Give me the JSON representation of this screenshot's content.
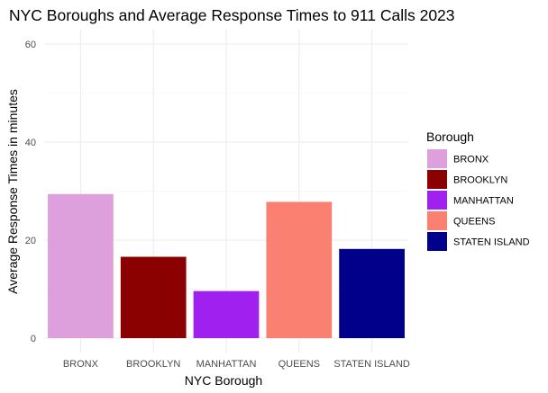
{
  "chart_data": {
    "type": "bar",
    "title": "NYC Boroughs and Average Response Times to 911 Calls 2023",
    "xlabel": "NYC Borough",
    "ylabel": "Average Response Times in minutes",
    "categories": [
      "BRONX",
      "BROOKLYN",
      "MANHATTAN",
      "QUEENS",
      "STATEN ISLAND"
    ],
    "values": [
      29.4,
      16.6,
      9.6,
      27.8,
      18.2
    ],
    "colors": [
      "#dda0dd",
      "#8b0000",
      "#a020f0",
      "#fa8072",
      "#00008b"
    ],
    "ylim": [
      0,
      62
    ],
    "yticks": [
      "0",
      "20",
      "40",
      "60"
    ],
    "grid": true,
    "legend": {
      "title": "Borough",
      "placement": "right",
      "entries": [
        "BRONX",
        "BROOKLYN",
        "MANHATTAN",
        "QUEENS",
        "STATEN ISLAND"
      ]
    }
  }
}
